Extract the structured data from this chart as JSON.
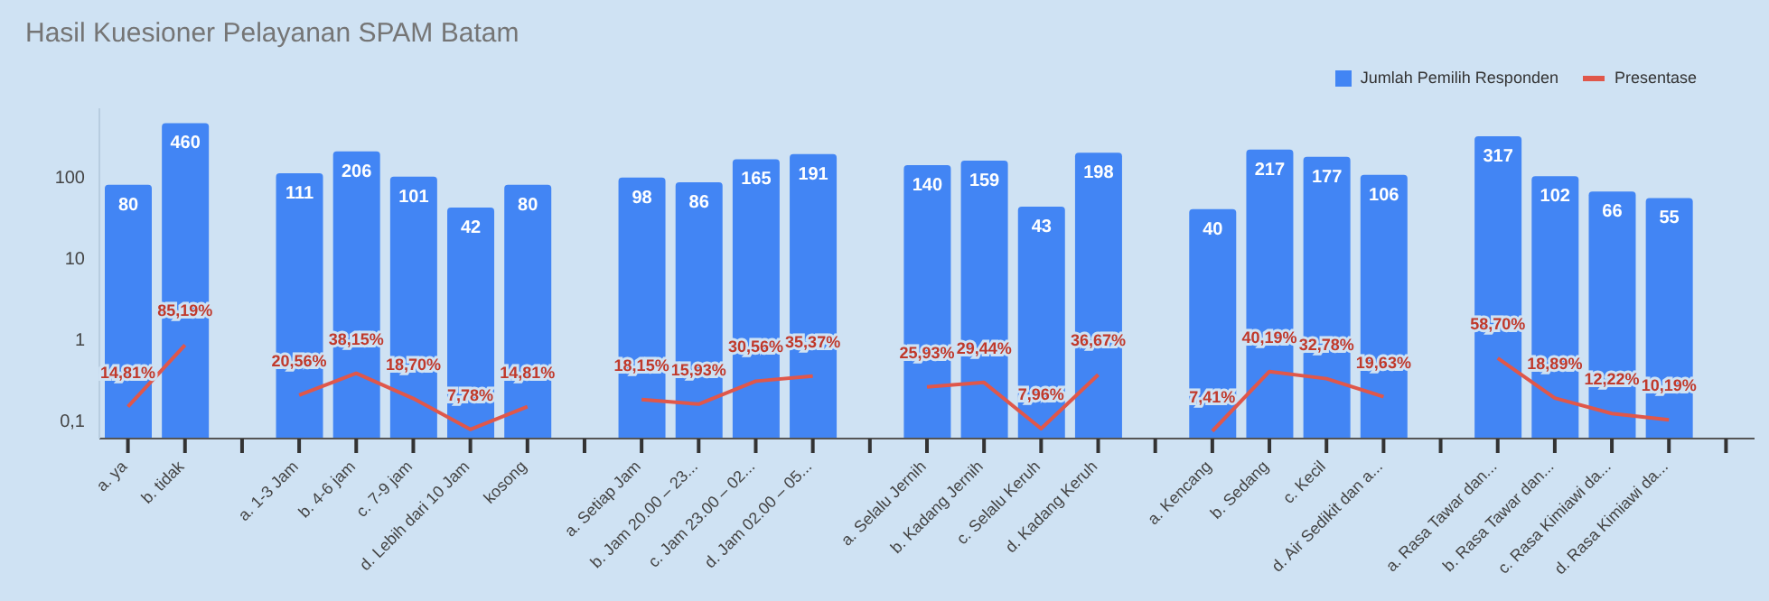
{
  "chart_data": {
    "type": "bar",
    "title": "Hasil Kuesioner Pelayanan SPAM Batam",
    "categories": [
      "a. ya",
      "b. tidak",
      null,
      "a. 1-3 Jam",
      "b. 4-6 jam",
      "c. 7-9 jam",
      "d. Lebih dari 10 Jam",
      "kosong",
      null,
      "a. Setiap Jam",
      "b. Jam 20.00 – 23...",
      "c. Jam 23.00 – 02...",
      "d. Jam 02.00 – 05...",
      null,
      "a. Selalu Jernih",
      "b. Kadang Jernih",
      "c. Selalu Keruh",
      "d. Kadang Keruh",
      null,
      "a. Kencang",
      "b. Sedang",
      "c. Kecil",
      "d. Air Sedikit dan a...",
      null,
      "a. Rasa Tawar dan...",
      "b. Rasa Tawar dan...",
      "c. Rasa Kimiawi da...",
      "d. Rasa Kimiawi da...",
      null
    ],
    "series": [
      {
        "name": "Jumlah Pemilih Responden",
        "color": "#4285f4",
        "values": [
          80,
          460,
          null,
          111,
          206,
          101,
          42,
          80,
          null,
          98,
          86,
          165,
          191,
          null,
          140,
          159,
          43,
          198,
          null,
          40,
          217,
          177,
          106,
          null,
          317,
          102,
          66,
          55,
          null
        ],
        "value_labels": [
          "80",
          "460",
          null,
          "111",
          "206",
          "101",
          "42",
          "80",
          null,
          "98",
          "86",
          "165",
          "191",
          null,
          "140",
          "159",
          "43",
          "198",
          null,
          "40",
          "217",
          "177",
          "106",
          null,
          "317",
          "102",
          "66",
          "55",
          null
        ]
      },
      {
        "name": "Presentase",
        "type": "line",
        "color": "#e0574a",
        "values": [
          0.1481,
          0.8519,
          null,
          0.2056,
          0.3815,
          0.187,
          0.0778,
          0.1481,
          null,
          0.1815,
          0.1593,
          0.3056,
          0.3537,
          null,
          0.2593,
          0.2944,
          0.0796,
          0.3667,
          null,
          0.0741,
          0.4019,
          0.3278,
          0.1963,
          null,
          0.587,
          0.1889,
          0.1222,
          0.1019,
          null
        ],
        "value_labels": [
          "14,81%",
          "85,19%",
          null,
          "20,56%",
          "38,15%",
          "18,70%",
          "7,78%",
          "14,81%",
          null,
          "18,15%",
          "15,93%",
          "30,56%",
          "35,37%",
          null,
          "25,93%",
          "29,44%",
          "7,96%",
          "36,67%",
          null,
          "7,41%",
          "40,19%",
          "32,78%",
          "19,63%",
          null,
          "58,70%",
          "18,89%",
          "12,22%",
          "10,19%",
          null
        ]
      }
    ],
    "log": true,
    "ylim": [
      0.06,
      700
    ],
    "yticks": [
      {
        "value": 0.1,
        "label": "0,1"
      },
      1,
      10,
      100
    ],
    "grid": false,
    "legend": "top right",
    "marker": "none",
    "line_style": "solid"
  }
}
